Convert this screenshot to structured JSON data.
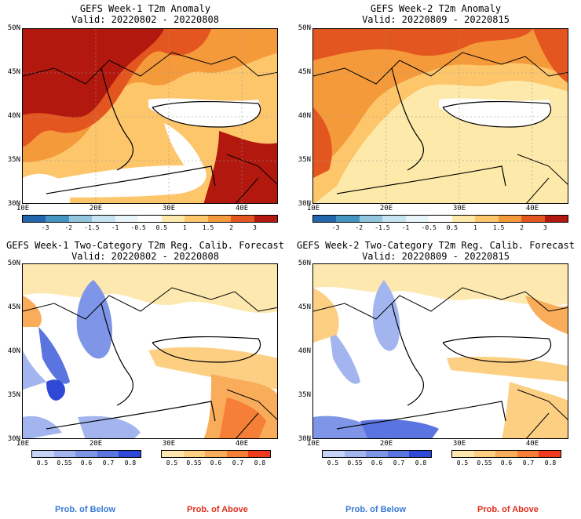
{
  "panels": [
    {
      "title1": "GEFS Week-1 T2m Anomaly",
      "title2": "Valid: 20220802 - 20220808",
      "kind": "anomaly"
    },
    {
      "title1": "GEFS Week-2 T2m Anomaly",
      "title2": "Valid: 20220809 - 20220815",
      "kind": "anomaly"
    },
    {
      "title1": "GEFS Week-1 Two-Category T2m Reg. Calib. Forecast",
      "title2": "Valid: 20220802 - 20220808",
      "kind": "prob"
    },
    {
      "title1": "GEFS Week-2 Two-Category T2m Reg. Calib. Forecast",
      "title2": "Valid: 20220809 - 20220815",
      "kind": "prob"
    }
  ],
  "lat_labels": [
    "50N",
    "45N",
    "40N",
    "35N",
    "30N"
  ],
  "lon_labels": [
    "10E",
    "20E",
    "30E",
    "40E"
  ],
  "anomaly_colorbar": {
    "labels": [
      "-3",
      "-2",
      "-1.5",
      "-1",
      "-0.5",
      "0.5",
      "1",
      "1.5",
      "2",
      "3"
    ],
    "colors": [
      "#2166ac",
      "#4393c3",
      "#92c5de",
      "#c6e3f0",
      "#e8f6fa",
      "#ffffff",
      "#fde9a9",
      "#fdc66b",
      "#f59a3a",
      "#e4561f",
      "#b2180e"
    ]
  },
  "prob_colorbars": {
    "below": {
      "labels": [
        "0.5",
        "0.55",
        "0.6",
        "0.7",
        "0.8"
      ],
      "colors": [
        "#c7d3f5",
        "#a3b5ef",
        "#7e95e8",
        "#5a74e0",
        "#2f48d6"
      ]
    },
    "above": {
      "labels": [
        "0.5",
        "0.55",
        "0.6",
        "0.7",
        "0.8"
      ],
      "colors": [
        "#fde9b0",
        "#fccf83",
        "#f9ad5a",
        "#f57f36",
        "#ef3a1d"
      ]
    }
  },
  "legend": {
    "below": "Prob. of Below",
    "above": "Prob. of Above",
    "below_color": "#3a7bd5",
    "above_color": "#e0301e"
  }
}
